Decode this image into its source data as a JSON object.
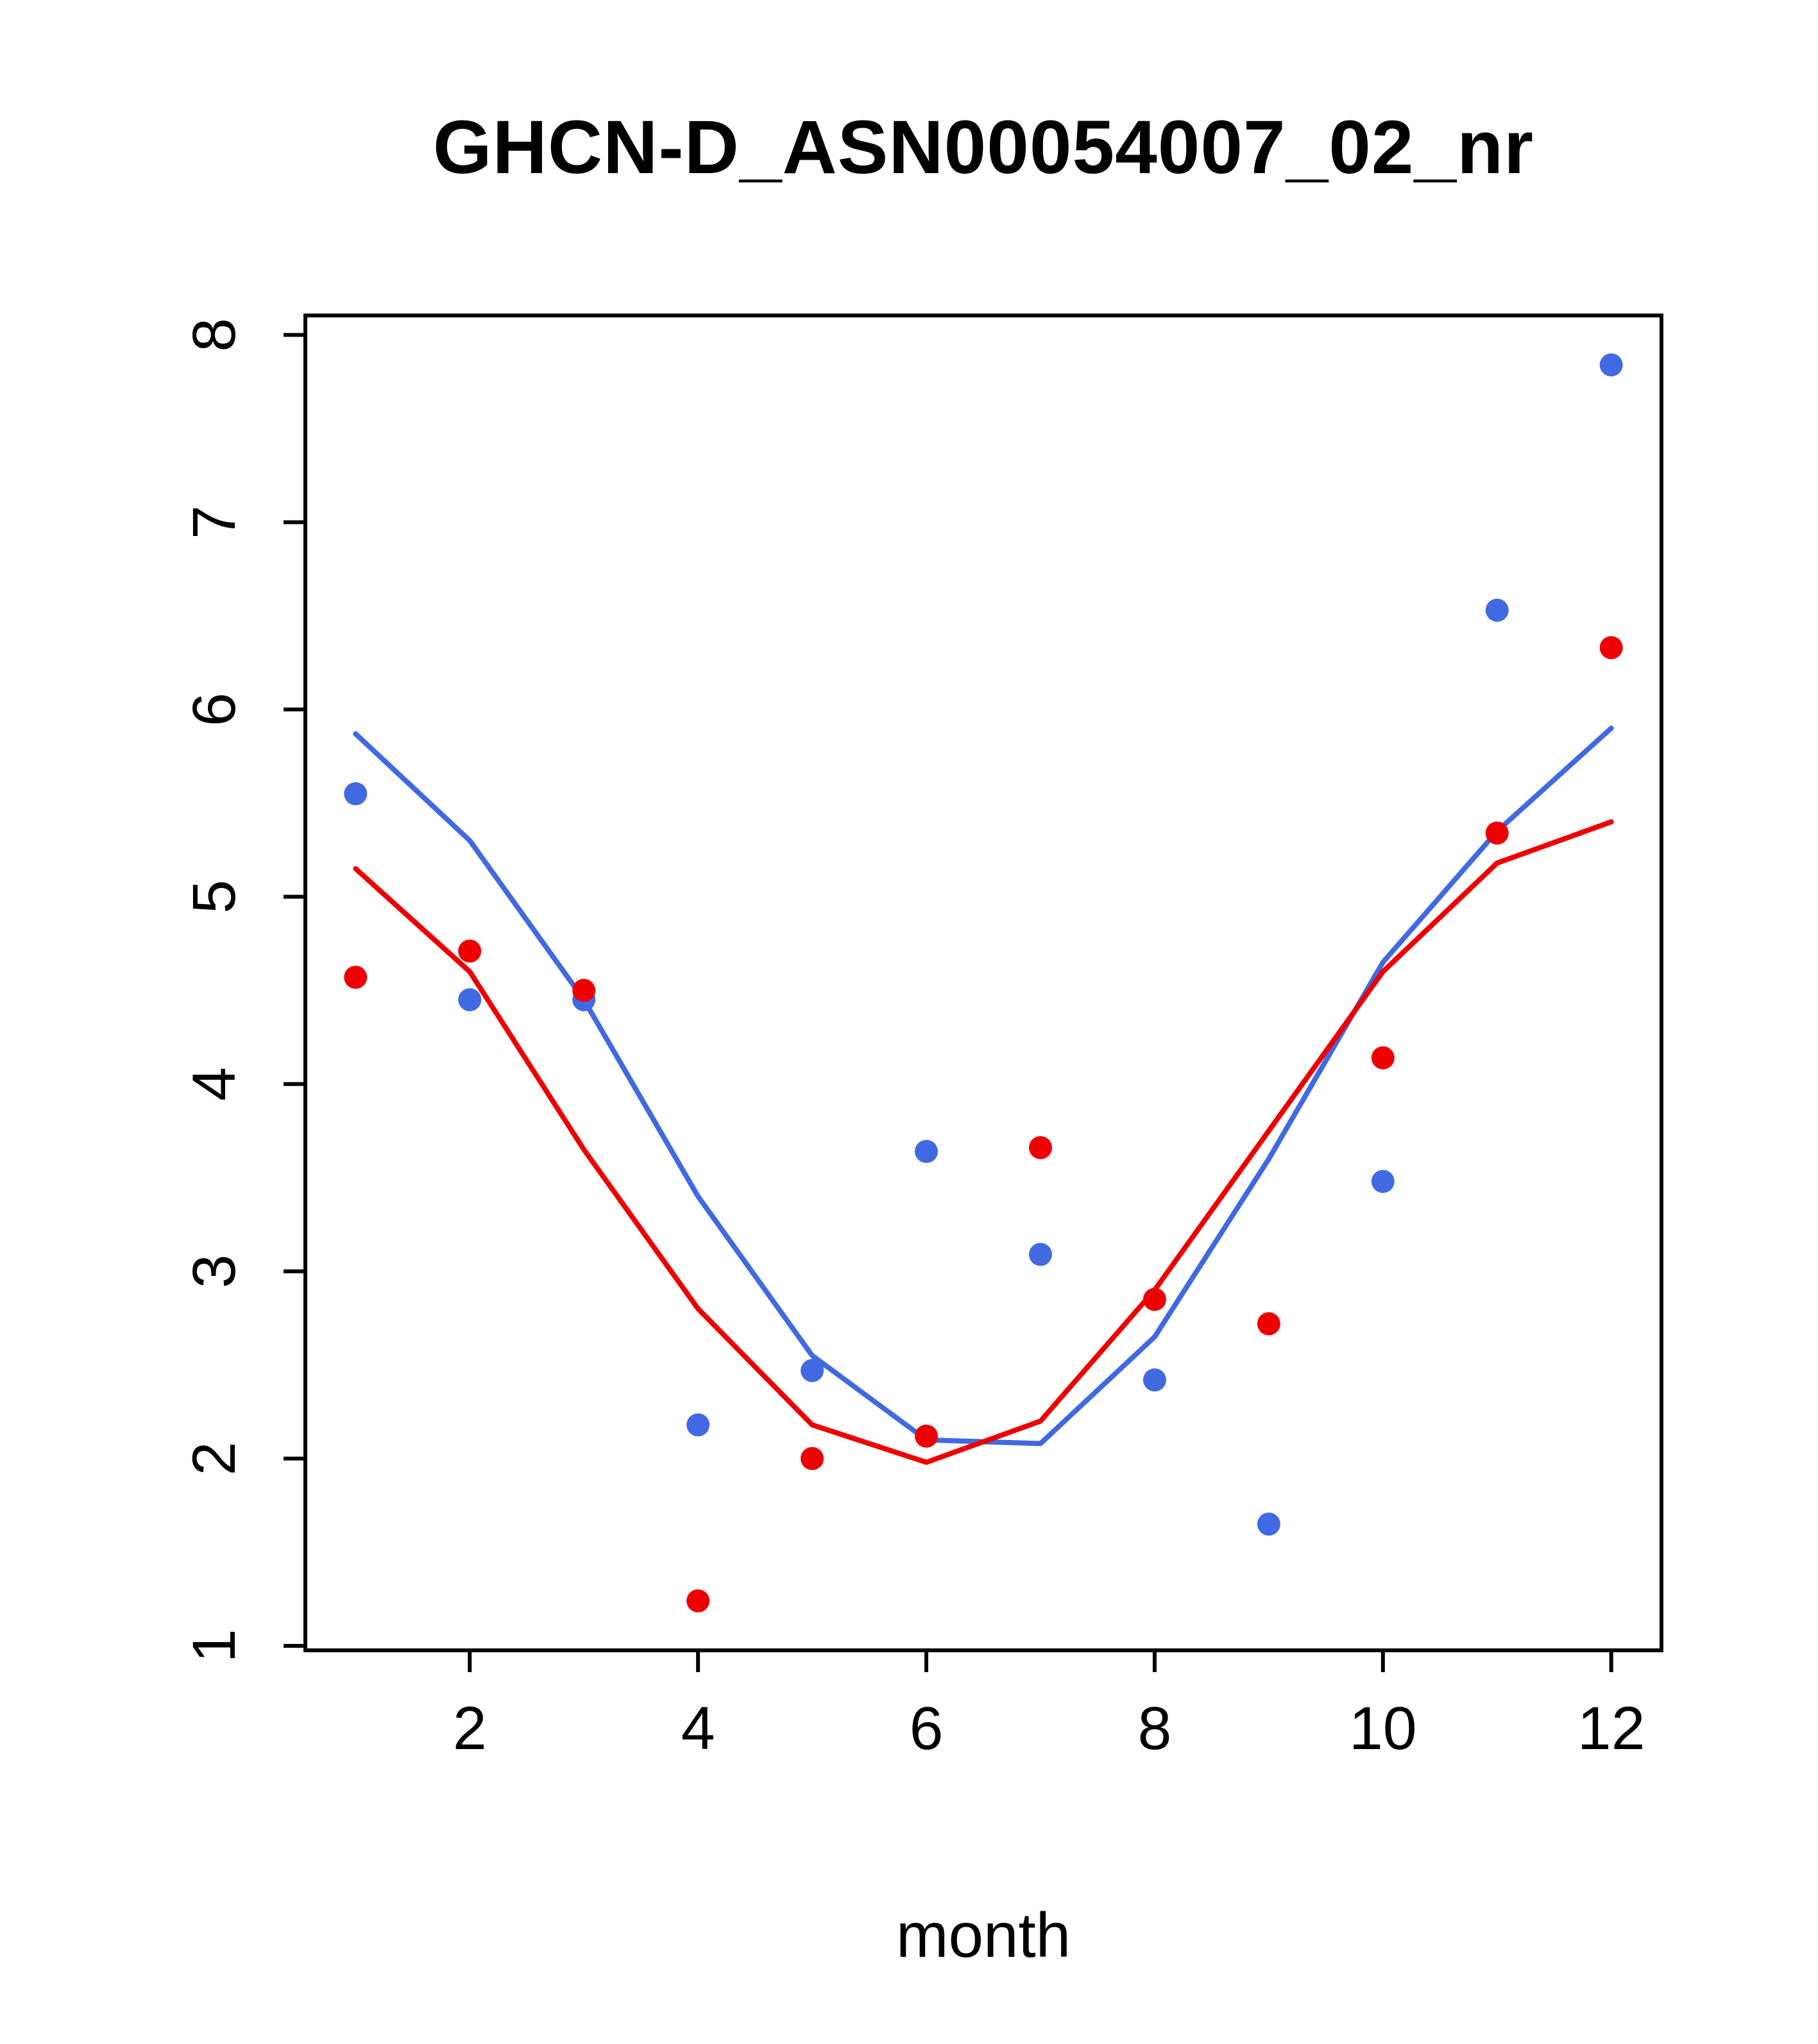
{
  "chart_data": {
    "type": "scatter",
    "title": "GHCN-D_ASN00054007_02_nr",
    "xlabel": "month",
    "ylabel": "",
    "grid": false,
    "legend": "none",
    "xlim": [
      0.56,
      12.44
    ],
    "ylim": [
      0.976,
      8.104
    ],
    "x_ticks": [
      2,
      4,
      6,
      8,
      10,
      12
    ],
    "y_ticks": [
      1,
      2,
      3,
      4,
      5,
      6,
      7,
      8
    ],
    "x": [
      1,
      2,
      3,
      4,
      5,
      6,
      7,
      8,
      9,
      10,
      11,
      12
    ],
    "colors": {
      "blue": "#4169E1",
      "red": "#EE0000"
    },
    "series": [
      {
        "name": "blue-smooth-line",
        "type": "line",
        "color": "#4169E1",
        "values": [
          5.87,
          5.3,
          4.45,
          3.4,
          2.55,
          2.1,
          2.08,
          2.65,
          3.6,
          4.65,
          5.35,
          5.9
        ]
      },
      {
        "name": "red-smooth-line",
        "type": "line",
        "color": "#EE0000",
        "values": [
          5.15,
          4.6,
          3.65,
          2.8,
          2.18,
          1.98,
          2.2,
          2.9,
          3.75,
          4.6,
          5.18,
          5.4
        ]
      },
      {
        "name": "blue-points",
        "type": "scatter",
        "color": "#4169E1",
        "values": [
          5.55,
          4.45,
          4.45,
          2.18,
          2.47,
          3.64,
          3.09,
          2.42,
          1.65,
          3.48,
          6.53,
          7.84
        ]
      },
      {
        "name": "red-points",
        "type": "scatter",
        "color": "#EE0000",
        "values": [
          4.57,
          4.71,
          4.5,
          1.24,
          2.0,
          2.12,
          3.66,
          2.85,
          2.72,
          4.14,
          5.34,
          6.33
        ]
      }
    ]
  }
}
